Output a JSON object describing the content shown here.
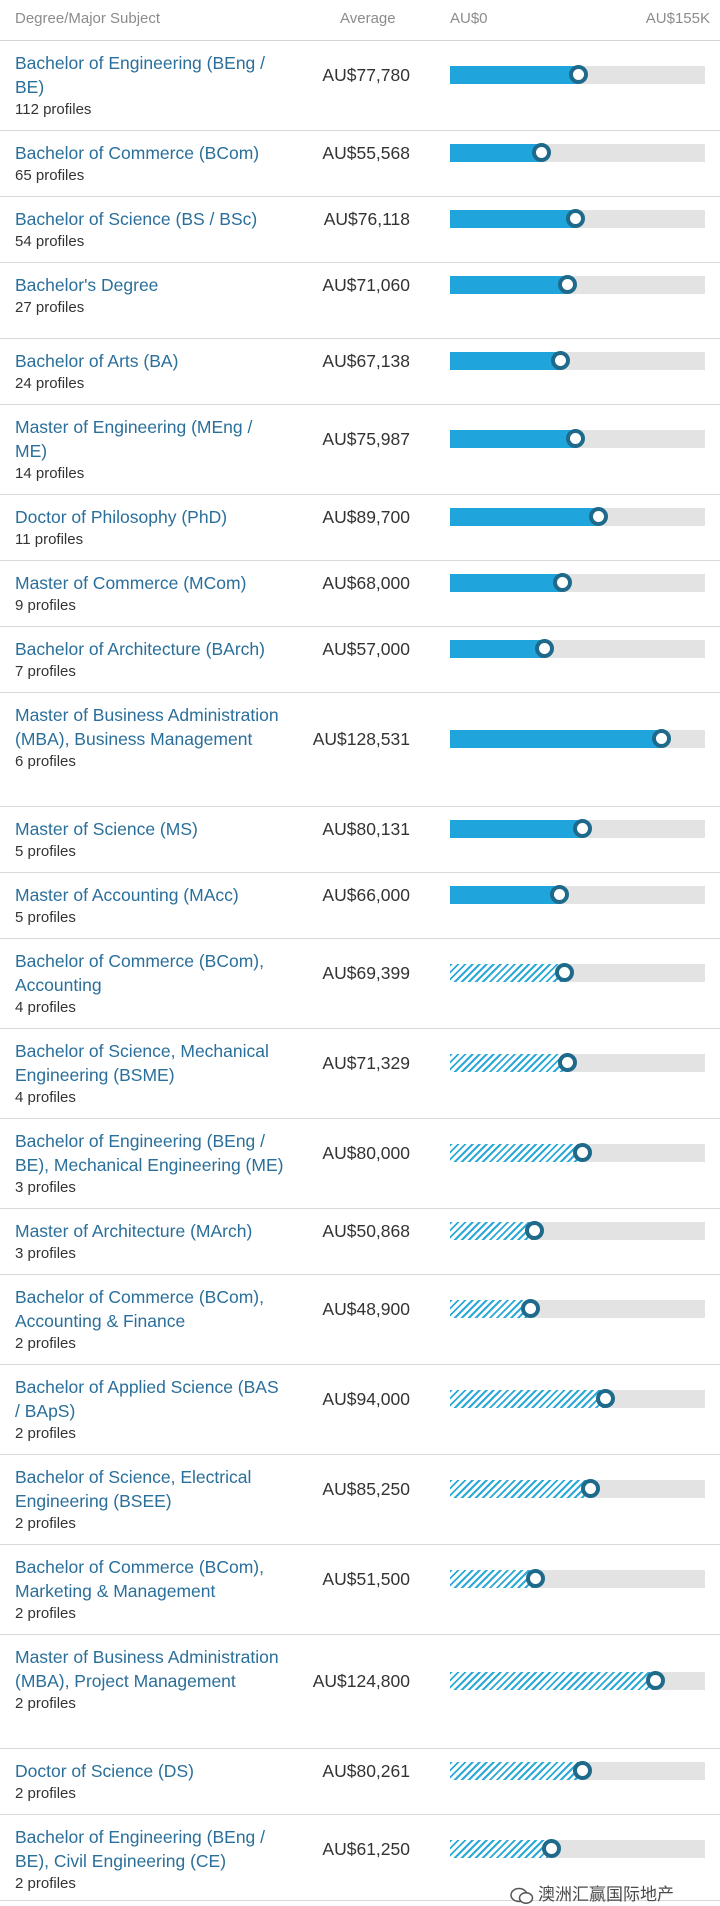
{
  "header": {
    "subject": "Degree/Major Subject",
    "average": "Average",
    "axis_min": "AU$0",
    "axis_max": "AU$155K"
  },
  "axis_max_value": 155000,
  "colors": {
    "bar_solid": "#20a4dc",
    "bar_hatched": "#2ba9d7",
    "track": "#e3e3e3",
    "marker": "#1f6a8a",
    "link": "#2a6f9b"
  },
  "rows": [
    {
      "name": "Bachelor of Engineering (BEng / BE)",
      "profiles": "112 profiles",
      "average": "AU$77,780",
      "value": 77780,
      "style": "solid"
    },
    {
      "name": "Bachelor of Commerce (BCom)",
      "profiles": "65 profiles",
      "average": "AU$55,568",
      "value": 55568,
      "style": "solid"
    },
    {
      "name": "Bachelor of Science (BS / BSc)",
      "profiles": "54 profiles",
      "average": "AU$76,118",
      "value": 76118,
      "style": "solid"
    },
    {
      "name": "Bachelor's Degree",
      "profiles": "27 profiles",
      "average": "AU$71,060",
      "value": 71060,
      "style": "solid"
    },
    {
      "name": "Bachelor of Arts (BA)",
      "profiles": "24 profiles",
      "average": "AU$67,138",
      "value": 67138,
      "style": "solid"
    },
    {
      "name": "Master of Engineering (MEng / ME)",
      "profiles": "14 profiles",
      "average": "AU$75,987",
      "value": 75987,
      "style": "solid"
    },
    {
      "name": "Doctor of Philosophy (PhD)",
      "profiles": "11 profiles",
      "average": "AU$89,700",
      "value": 89700,
      "style": "solid"
    },
    {
      "name": "Master of Commerce (MCom)",
      "profiles": "9 profiles",
      "average": "AU$68,000",
      "value": 68000,
      "style": "solid"
    },
    {
      "name": "Bachelor of Architecture (BArch)",
      "profiles": "7 profiles",
      "average": "AU$57,000",
      "value": 57000,
      "style": "solid"
    },
    {
      "name": "Master of Business Administration (MBA), Business Management",
      "profiles": "6 profiles",
      "average": "AU$128,531",
      "value": 128531,
      "style": "solid"
    },
    {
      "name": "Master of Science (MS)",
      "profiles": "5 profiles",
      "average": "AU$80,131",
      "value": 80131,
      "style": "solid"
    },
    {
      "name": "Master of Accounting (MAcc)",
      "profiles": "5 profiles",
      "average": "AU$66,000",
      "value": 66000,
      "style": "solid"
    },
    {
      "name": "Bachelor of Commerce (BCom), Accounting",
      "profiles": "4 profiles",
      "average": "AU$69,399",
      "value": 69399,
      "style": "hatched"
    },
    {
      "name": "Bachelor of Science, Mechanical Engineering (BSME)",
      "profiles": "4 profiles",
      "average": "AU$71,329",
      "value": 71329,
      "style": "hatched"
    },
    {
      "name": "Bachelor of Engineering (BEng / BE), Mechanical Engineering (ME)",
      "profiles": "3 profiles",
      "average": "AU$80,000",
      "value": 80000,
      "style": "hatched"
    },
    {
      "name": "Master of Architecture (MArch)",
      "profiles": "3 profiles",
      "average": "AU$50,868",
      "value": 50868,
      "style": "hatched"
    },
    {
      "name": "Bachelor of Commerce (BCom), Accounting & Finance",
      "profiles": "2 profiles",
      "average": "AU$48,900",
      "value": 48900,
      "style": "hatched"
    },
    {
      "name": "Bachelor of Applied Science (BAS / BApS)",
      "profiles": "2 profiles",
      "average": "AU$94,000",
      "value": 94000,
      "style": "hatched"
    },
    {
      "name": "Bachelor of Science, Electrical Engineering (BSEE)",
      "profiles": "2 profiles",
      "average": "AU$85,250",
      "value": 85250,
      "style": "hatched"
    },
    {
      "name": "Bachelor of Commerce (BCom), Marketing & Management",
      "profiles": "2 profiles",
      "average": "AU$51,500",
      "value": 51500,
      "style": "hatched"
    },
    {
      "name": "Master of Business Administration (MBA), Project Management",
      "profiles": "2 profiles",
      "average": "AU$124,800",
      "value": 124800,
      "style": "hatched"
    },
    {
      "name": "Doctor of Science (DS)",
      "profiles": "2 profiles",
      "average": "AU$80,261",
      "value": 80261,
      "style": "hatched"
    },
    {
      "name": "Bachelor of Engineering (BEng / BE), Civil Engineering (CE)",
      "profiles": "2 profiles",
      "average": "AU$61,250",
      "value": 61250,
      "style": "hatched"
    }
  ],
  "watermark": "澳洲汇赢国际地产"
}
